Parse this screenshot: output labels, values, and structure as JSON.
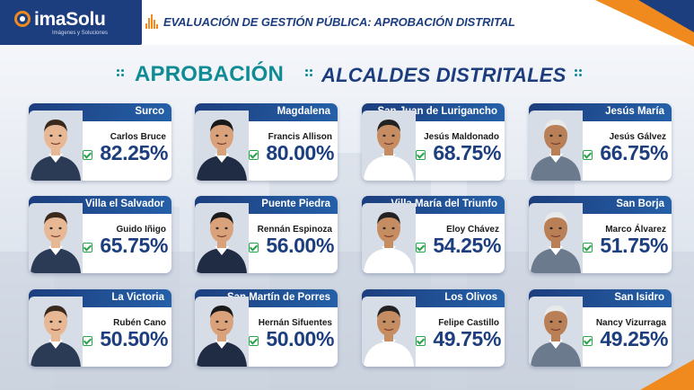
{
  "brand": {
    "name": "imaSolu",
    "tagline": "Imágenes y Soluciones"
  },
  "header": {
    "title": "EVALUACIÓN DE GESTIÓN PÚBLICA: APROBACIÓN DISTRITAL"
  },
  "headline": {
    "part1": "APROBACIÓN",
    "part2": "ALCALDES DISTRITALES"
  },
  "colors": {
    "navy": "#1c3e7e",
    "teal": "#0f8b96",
    "orange": "#f08a1e",
    "check_green": "#2aa44a"
  },
  "cards": [
    {
      "district": "Surco",
      "mayor": "Carlos Bruce",
      "approval": "82.25%"
    },
    {
      "district": "Magdalena",
      "mayor": "Francis Allison",
      "approval": "80.00%"
    },
    {
      "district": "San Juan de Lurigancho",
      "mayor": "Jesús Maldonado",
      "approval": "68.75%"
    },
    {
      "district": "Jesús María",
      "mayor": "Jesús Gálvez",
      "approval": "66.75%"
    },
    {
      "district": "Villa el Salvador",
      "mayor": "Guido Iñigo",
      "approval": "65.75%"
    },
    {
      "district": "Puente Piedra",
      "mayor": "Rennán Espinoza",
      "approval": "56.00%"
    },
    {
      "district": "Villa María del Triunfo",
      "mayor": "Eloy Chávez",
      "approval": "54.25%"
    },
    {
      "district": "San Borja",
      "mayor": "Marco Álvarez",
      "approval": "51.75%"
    },
    {
      "district": "La Victoria",
      "mayor": "Rubén Cano",
      "approval": "50.50%"
    },
    {
      "district": "San Martín de Porres",
      "mayor": "Hernán Sifuentes",
      "approval": "50.00%"
    },
    {
      "district": "Los Olivos",
      "mayor": "Felipe Castillo",
      "approval": "49.75%"
    },
    {
      "district": "San Isidro",
      "mayor": "Nancy Vizurraga",
      "approval": "49.25%"
    }
  ]
}
